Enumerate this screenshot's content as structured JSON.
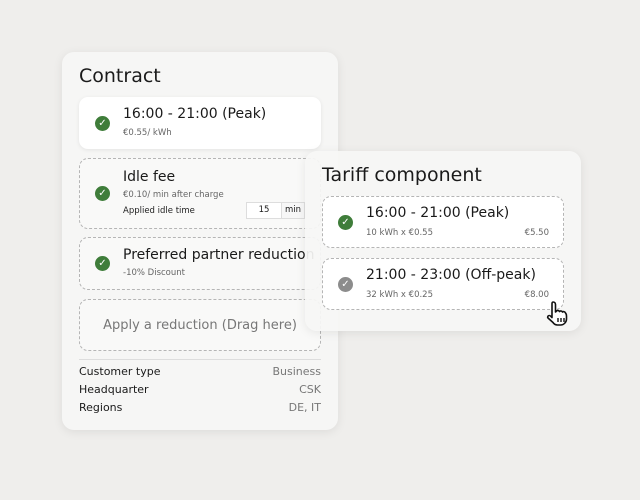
{
  "contract": {
    "title": "Contract",
    "peak": {
      "title": "16:00 - 21:00 (Peak)",
      "sub": "€0.55/ kWh"
    },
    "idle": {
      "title": "Idle fee",
      "sub": "€0.10/ min after charge",
      "field_label": "Applied idle time",
      "value": "15",
      "unit": "min"
    },
    "partner": {
      "title": "Preferred partner reduction",
      "sub": "-10% Discount"
    },
    "dropzone": "Apply a reduction (Drag here)",
    "rows": [
      {
        "label": "Customer type",
        "value": "Business"
      },
      {
        "label": "Headquarter",
        "value": "CSK"
      },
      {
        "label": "Regions",
        "value": "DE, IT"
      }
    ]
  },
  "tariff": {
    "title": "Tariff component",
    "items": [
      {
        "title": "16:00 - 21:00 (Peak)",
        "calc": "10 kWh x €0.55",
        "amount": "€5.50",
        "status": "active"
      },
      {
        "title": "21:00 - 23:00 (Off-peak)",
        "calc": "32 kWh x €0.25",
        "amount": "€8.00",
        "status": "inactive"
      }
    ]
  },
  "colors": {
    "check_active": "#3f7d3a",
    "check_inactive": "#8c8c8c"
  }
}
